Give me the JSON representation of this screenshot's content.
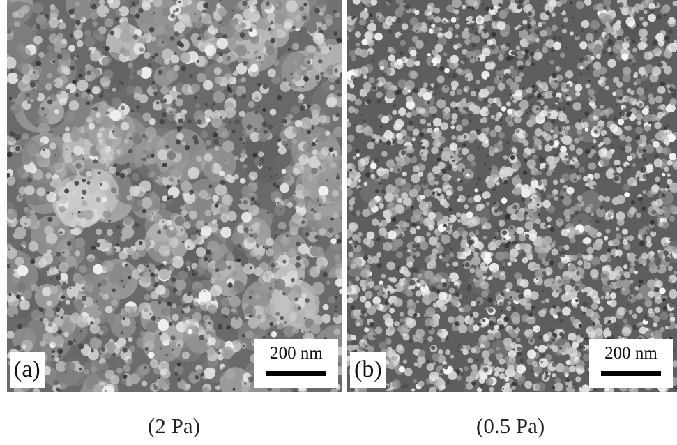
{
  "panels": [
    {
      "label": "(a)",
      "scale_bar_label": "200 nm",
      "caption": "(2 Pa)"
    },
    {
      "label": "(b)",
      "scale_bar_label": "200 nm",
      "caption": "(0.5 Pa)"
    }
  ],
  "colors": {
    "background": "#ffffff",
    "micrograph_dark": "#3a3a3a",
    "micrograph_light": "#e6e6e6"
  }
}
